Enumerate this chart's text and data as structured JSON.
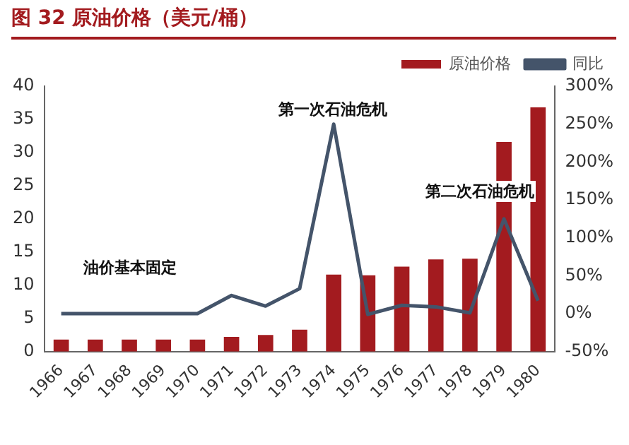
{
  "chart_data": {
    "type": "bar",
    "title": "图 32 原油价格（美元/桶）",
    "categories": [
      "1966",
      "1967",
      "1968",
      "1969",
      "1970",
      "1971",
      "1972",
      "1973",
      "1974",
      "1975",
      "1976",
      "1977",
      "1978",
      "1979",
      "1980"
    ],
    "series": [
      {
        "name": "原油价格",
        "color": "#a31b1f",
        "values": [
          1.8,
          1.8,
          1.8,
          1.8,
          1.8,
          2.2,
          2.5,
          3.3,
          11.6,
          11.5,
          12.8,
          13.9,
          14.0,
          31.6,
          36.8
        ]
      },
      {
        "name": "同比",
        "type": "line",
        "axis": "y2",
        "color": "#44546a",
        "values": [
          0,
          0,
          0,
          0,
          0,
          24,
          10,
          33,
          250,
          -1,
          11,
          9,
          1,
          125,
          17
        ]
      }
    ],
    "ylim": [
      0,
      40
    ],
    "yticks": [
      0,
      5,
      10,
      15,
      20,
      25,
      30,
      35,
      40
    ],
    "y2lim": [
      -50,
      300
    ],
    "y2ticks": [
      {
        "value": -50,
        "label": "-50%"
      },
      {
        "value": 0,
        "label": "0%"
      },
      {
        "value": 50,
        "label": "50%"
      },
      {
        "value": 100,
        "label": "100%"
      },
      {
        "value": 150,
        "label": "150%"
      },
      {
        "value": 200,
        "label": "200%"
      },
      {
        "value": 250,
        "label": "250%"
      },
      {
        "value": 300,
        "label": "300%"
      }
    ],
    "grid": false,
    "legend": "top right",
    "marker": "none",
    "annotations": [
      "油价基本固定",
      "第一次石油危机",
      "第二次石油危机"
    ]
  }
}
